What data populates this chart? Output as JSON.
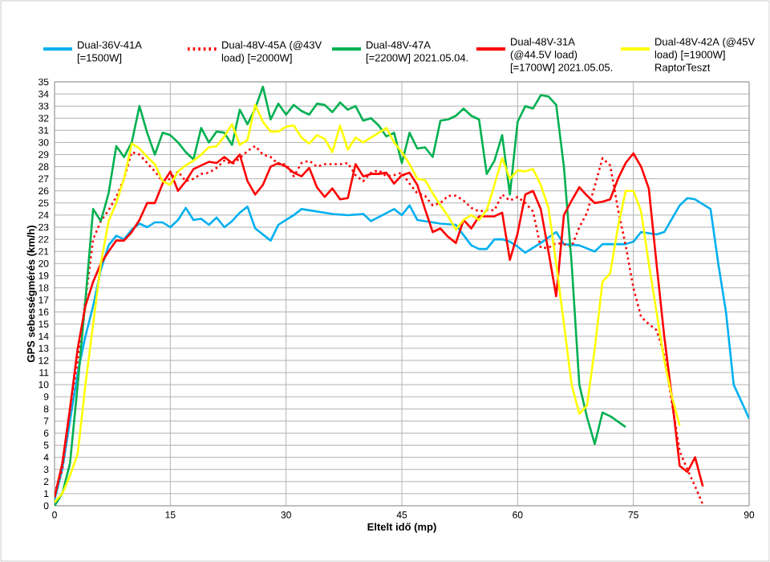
{
  "chart_data": {
    "type": "line",
    "xlabel": "Eltelt idő (mp)",
    "ylabel": "GPS sebességmérés (km/h)",
    "xlim": [
      0,
      90
    ],
    "xticks": [
      0,
      15,
      30,
      45,
      60,
      75,
      90
    ],
    "ylim": [
      0,
      35
    ],
    "yticks": [
      0,
      1,
      2,
      3,
      4,
      5,
      6,
      7,
      8,
      9,
      10,
      11,
      12,
      13,
      14,
      15,
      16,
      17,
      18,
      19,
      20,
      21,
      22,
      23,
      24,
      25,
      26,
      27,
      28,
      29,
      30,
      31,
      32,
      33,
      34,
      35
    ],
    "grid": true,
    "legend": "top",
    "marker": "none",
    "series": [
      {
        "name": "Dual-36V-41A [=1500W]",
        "color": "#00b0f0",
        "line_style": "solid",
        "x": [
          0,
          1,
          2,
          3,
          4,
          5,
          6,
          7,
          8,
          9,
          10,
          11,
          12,
          13,
          14,
          15,
          16,
          17,
          18,
          19,
          20,
          21,
          22,
          23,
          24,
          25,
          26,
          27,
          28,
          29,
          30,
          31,
          32,
          34,
          36,
          38,
          40,
          41,
          44,
          45,
          46,
          47,
          50,
          52,
          54,
          55,
          56,
          57,
          58,
          59,
          60,
          61,
          63,
          65,
          66,
          68,
          70,
          71,
          74,
          75,
          76,
          78,
          79,
          81,
          82,
          83,
          85,
          86,
          87,
          88,
          90
        ],
        "values": [
          0.5,
          3,
          7,
          11,
          14,
          16.5,
          19.5,
          21.5,
          22.3,
          22,
          22.8,
          23.3,
          23,
          23.4,
          23.4,
          23,
          23.6,
          24.6,
          23.6,
          23.7,
          23.2,
          23.8,
          23,
          23.5,
          24.2,
          24.7,
          22.9,
          22.4,
          21.9,
          23.2,
          23.6,
          24,
          24.5,
          24.3,
          24.1,
          24,
          24.1,
          23.5,
          24.5,
          24,
          24.8,
          23.6,
          23.3,
          23.2,
          21.5,
          21.2,
          21.2,
          22,
          22,
          21.8,
          21.4,
          20.9,
          21.7,
          22.6,
          21.6,
          21.5,
          21,
          21.6,
          21.6,
          21.8,
          22.6,
          22.4,
          22.6,
          24.8,
          25.4,
          25.3,
          24.5,
          20,
          16,
          10,
          7.2
        ]
      },
      {
        "name": "Dual-48V-45A (@43V load) [=2000W]",
        "color": "#ff0000",
        "line_style": "dotted",
        "x": [
          0,
          1,
          2,
          3,
          4,
          5,
          6,
          7,
          8,
          9,
          10,
          11,
          12,
          13,
          14,
          15,
          16,
          17,
          18,
          19,
          20,
          21,
          22,
          23,
          24,
          25,
          26,
          27,
          28,
          29,
          30,
          31,
          32,
          33,
          34,
          35,
          36,
          37,
          38,
          39,
          40,
          41,
          42,
          43,
          44,
          45,
          46,
          47,
          48,
          49,
          50,
          51,
          52,
          53,
          54,
          55,
          56,
          57,
          58,
          59,
          60,
          61,
          62,
          63,
          64,
          65,
          66,
          67,
          68,
          69,
          70,
          71,
          72,
          73,
          74,
          75,
          76,
          77,
          78,
          79,
          80,
          81,
          82,
          83,
          84
        ],
        "values": [
          1,
          3,
          8,
          12,
          17,
          22,
          23.5,
          24.4,
          25.5,
          27,
          29.2,
          29,
          28.3,
          27.6,
          26.8,
          27,
          27.6,
          26.8,
          27,
          27.4,
          27.5,
          27.9,
          28.5,
          28.2,
          28.7,
          29.3,
          29.7,
          29,
          28.8,
          28.2,
          28.2,
          27.2,
          28.3,
          28.5,
          28,
          28.2,
          28.2,
          28.2,
          28.3,
          27.3,
          26.8,
          27.5,
          27.7,
          27.2,
          27.3,
          27.5,
          26.6,
          25.8,
          25.6,
          24.8,
          25,
          25.6,
          25.6,
          25.2,
          24.6,
          24.3,
          24.4,
          24.4,
          25.7,
          25.2,
          25.5,
          25,
          24.3,
          21.3,
          21.3,
          21.7,
          21.6,
          21.4,
          23,
          24.2,
          26.4,
          28.7,
          28.1,
          24.5,
          21.5,
          18,
          15.6,
          15,
          14.5,
          12.5,
          8.5,
          4.5,
          3,
          1.6,
          0.1
        ]
      },
      {
        "name": "Dual-48V-47A [=2200W] 2021.05.04.",
        "color": "#00b050",
        "line_style": "solid",
        "x": [
          0,
          1,
          2,
          3,
          4,
          5,
          6,
          7,
          8,
          9,
          10,
          11,
          12,
          13,
          14,
          15,
          16,
          17,
          18,
          19,
          20,
          21,
          22,
          23,
          24,
          25,
          26,
          27,
          28,
          29,
          30,
          31,
          32,
          33,
          34,
          35,
          36,
          37,
          38,
          39,
          40,
          41,
          42,
          43,
          44,
          45,
          46,
          47,
          48,
          49,
          50,
          51,
          52,
          53,
          54,
          55,
          56,
          57,
          58,
          59,
          60,
          61,
          62,
          63,
          64,
          65,
          66,
          67,
          68,
          69,
          70,
          71,
          72,
          74
        ],
        "values": [
          0,
          1,
          3.5,
          10,
          17,
          24.5,
          23.5,
          25.8,
          29.7,
          28.8,
          30,
          33,
          30.8,
          29,
          30.8,
          30.6,
          30,
          29.2,
          28.6,
          31.2,
          30,
          30.9,
          30.8,
          29.8,
          32.7,
          31.5,
          32.8,
          34.6,
          31.9,
          33.2,
          32.3,
          33.1,
          32.6,
          32.3,
          33.2,
          33.1,
          32.5,
          33.3,
          32.7,
          33,
          31.8,
          32,
          31.4,
          30.5,
          30.8,
          28.3,
          30.8,
          29.5,
          29.6,
          28.8,
          31.8,
          31.9,
          32.2,
          32.8,
          32.2,
          31.9,
          27.4,
          28.5,
          30.6,
          25.7,
          31.7,
          33,
          32.8,
          33.9,
          33.8,
          33.1,
          28,
          20,
          10,
          7.3,
          5.1,
          7.7,
          7.4,
          6.5
        ]
      },
      {
        "name": "Dual-48V-31A (@44.5V load) [=1700W] 2021.05.05.",
        "color": "#ff0000",
        "line_style": "solid",
        "x": [
          0,
          1,
          2,
          3,
          4,
          5,
          6,
          7,
          8,
          9,
          10,
          11,
          12,
          13,
          14,
          15,
          16,
          17,
          18,
          19,
          20,
          21,
          22,
          23,
          24,
          25,
          26,
          27,
          28,
          29,
          30,
          31,
          32,
          33,
          34,
          35,
          36,
          37,
          38,
          39,
          40,
          41,
          42,
          43,
          44,
          45,
          46,
          47,
          48,
          49,
          50,
          51,
          52,
          53,
          54,
          55,
          56,
          57,
          58,
          59,
          60,
          61,
          62,
          63,
          64,
          65,
          66,
          67,
          68,
          69,
          70,
          71,
          72,
          73,
          74,
          75,
          76,
          77,
          78,
          79,
          80,
          81,
          82,
          83,
          84
        ],
        "values": [
          0.7,
          3.5,
          8,
          13,
          16.5,
          18.5,
          20,
          21,
          21.9,
          21.9,
          22.6,
          23.6,
          25,
          25,
          26.6,
          27.6,
          26,
          26.8,
          27.8,
          28.1,
          28.4,
          28.3,
          28.8,
          28.3,
          29,
          26.8,
          25.7,
          26.5,
          28,
          28.3,
          28,
          27.5,
          27.2,
          27.9,
          26.3,
          25.5,
          26.2,
          25.3,
          25.4,
          28.2,
          27.2,
          27.4,
          27.4,
          27.5,
          26.6,
          27.3,
          27.5,
          26.5,
          24.5,
          22.6,
          22.9,
          22.2,
          21.7,
          23.6,
          22.9,
          23.9,
          23.9,
          23.9,
          24.2,
          20.3,
          22.5,
          25.7,
          26,
          24.5,
          21,
          17.3,
          24,
          25.2,
          26.3,
          25.6,
          25,
          25.1,
          25.3,
          27,
          28.3,
          29.1,
          28,
          26.2,
          20,
          14,
          8.9,
          3.3,
          2.8,
          4,
          1.6
        ]
      },
      {
        "name": "Dual-48V-42A (@45V load) [=1900W] RaptorTeszt",
        "color": "#ffff00",
        "line_style": "solid",
        "x": [
          0,
          1,
          2,
          3,
          4,
          5,
          6,
          7,
          8,
          9,
          10,
          11,
          12,
          13,
          14,
          15,
          16,
          17,
          18,
          19,
          20,
          21,
          22,
          23,
          24,
          25,
          26,
          27,
          28,
          29,
          30,
          31,
          32,
          33,
          34,
          35,
          36,
          37,
          38,
          39,
          40,
          41,
          42,
          43,
          44,
          45,
          46,
          47,
          48,
          49,
          50,
          51,
          52,
          53,
          54,
          55,
          56,
          57,
          58,
          59,
          60,
          61,
          62,
          63,
          64,
          65,
          66,
          67,
          68,
          69,
          70,
          71,
          72,
          73,
          74,
          75,
          76,
          77,
          78,
          79,
          80,
          81
        ],
        "values": [
          0.3,
          1,
          2.5,
          4.3,
          10,
          15,
          20,
          23.5,
          25,
          27,
          29.9,
          29.5,
          28.8,
          28.2,
          26.8,
          26.5,
          27.6,
          28.1,
          28.5,
          29,
          29.6,
          29.7,
          30.5,
          31.5,
          29.8,
          30.2,
          33.1,
          31.7,
          30.9,
          30.9,
          31.3,
          31.4,
          30.4,
          29.9,
          30.6,
          30.3,
          29.2,
          31.4,
          29.4,
          30.4,
          30,
          30.4,
          30.8,
          31.2,
          30,
          29.2,
          28.2,
          27,
          26.9,
          25.8,
          24.8,
          23.9,
          22.8,
          23.6,
          24,
          23.6,
          24.4,
          26.5,
          28.7,
          27,
          27.7,
          27.6,
          27.8,
          26.5,
          24.6,
          20,
          15,
          10,
          7.6,
          8.3,
          13,
          18.5,
          19.2,
          23,
          26,
          26,
          24.3,
          20,
          16,
          12,
          9,
          6.6
        ]
      }
    ]
  }
}
